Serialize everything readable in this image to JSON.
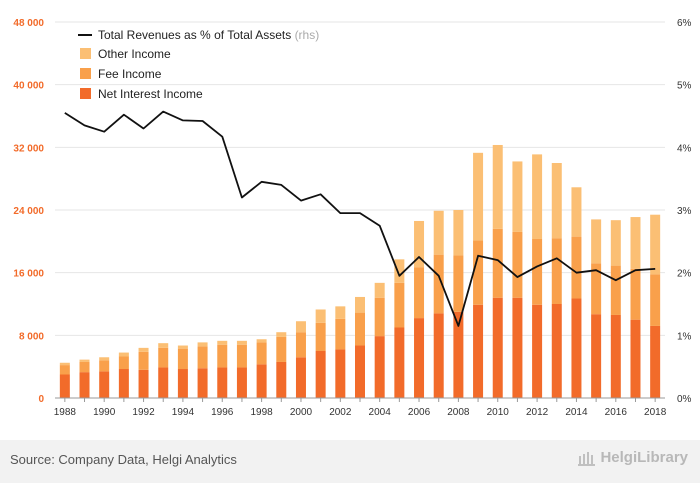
{
  "chart_data": {
    "type": "bar",
    "stacked": true,
    "categories": [
      "1988",
      "1989",
      "1990",
      "1991",
      "1992",
      "1993",
      "1994",
      "1995",
      "1996",
      "1997",
      "1998",
      "1999",
      "2000",
      "2001",
      "2002",
      "2003",
      "2004",
      "2005",
      "2006",
      "2007",
      "2008",
      "2009",
      "2010",
      "2011",
      "2012",
      "2013",
      "2014",
      "2015",
      "2016",
      "2017",
      "2018"
    ],
    "xtick_labels": [
      "1988",
      "1990",
      "1992",
      "1994",
      "1996",
      "1998",
      "2000",
      "2002",
      "2004",
      "2006",
      "2008",
      "2010",
      "2012",
      "2014",
      "2016",
      "2018"
    ],
    "ylim_left": [
      0,
      48000
    ],
    "yticks_left": [
      "0",
      "8 000",
      "16 000",
      "24 000",
      "32 000",
      "40 000",
      "48 000"
    ],
    "ylim_right": [
      0,
      6
    ],
    "yticks_right": [
      "0%",
      "1%",
      "2%",
      "3%",
      "4%",
      "5%",
      "6%"
    ],
    "series": [
      {
        "name": "Net Interest Income",
        "color": "#f26b2a",
        "values": [
          3000,
          3300,
          3400,
          3700,
          3600,
          3900,
          3700,
          3800,
          3900,
          3900,
          4300,
          4600,
          5200,
          6000,
          6200,
          6700,
          7900,
          9000,
          10200,
          10800,
          11000,
          11900,
          12800,
          12800,
          11900,
          12000,
          12700,
          10700,
          10600,
          10000,
          9200
        ]
      },
      {
        "name": "Fee Income",
        "color": "#f9a04b",
        "values": [
          1200,
          1300,
          1400,
          1600,
          2300,
          2500,
          2600,
          2800,
          2900,
          2900,
          2800,
          3200,
          3200,
          3600,
          3900,
          4200,
          4900,
          5700,
          6500,
          7500,
          7200,
          8200,
          8800,
          8400,
          8400,
          8400,
          7900,
          6500,
          6300,
          6500,
          6600
        ]
      },
      {
        "name": "Other Income",
        "color": "#fbbf74",
        "values": [
          300,
          300,
          400,
          500,
          500,
          600,
          400,
          500,
          500,
          500,
          400,
          600,
          1400,
          1700,
          1600,
          2000,
          1900,
          3000,
          5900,
          5600,
          5800,
          11200,
          10700,
          9000,
          10800,
          9600,
          6300,
          5600,
          5800,
          6600,
          7600
        ]
      },
      {
        "name": "Total Revenues as % of Total Assets",
        "note": "(rhs)",
        "color": "#111111",
        "type": "line",
        "values": [
          4.55,
          4.35,
          4.25,
          4.52,
          4.3,
          4.57,
          4.43,
          4.42,
          4.17,
          3.2,
          3.45,
          3.4,
          3.15,
          3.25,
          2.95,
          2.95,
          2.75,
          1.95,
          2.25,
          1.95,
          1.15,
          2.27,
          2.2,
          1.93,
          2.1,
          2.23,
          2.0,
          2.04,
          1.88,
          2.04,
          2.06
        ]
      }
    ]
  },
  "footer": {
    "source": "Source: Company Data, Helgi Analytics",
    "brand": "HelgiLibrary"
  },
  "colors": {
    "tick_left": "#f26b2a",
    "grid": "#e6e6e6",
    "footer_bg": "#f2f2f2"
  }
}
